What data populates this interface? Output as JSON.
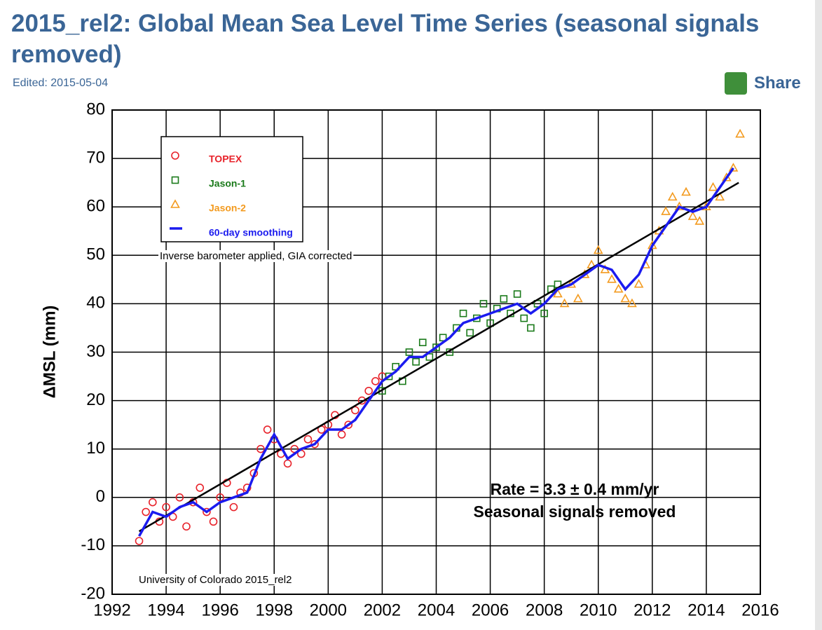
{
  "header": {
    "title": "2015_rel2: Global Mean Sea Level Time Series (seasonal signals removed)",
    "edited": "Edited: 2015-05-04",
    "share": "Share"
  },
  "chart_data": {
    "type": "scatter",
    "ylabel": "ΔMSL (mm)",
    "annotations": [
      "Inverse barometer applied, GIA corrected",
      "Rate = 3.3 ± 0.4 mm/yr",
      "Seasonal signals removed",
      "University of Colorado 2015_rel2"
    ],
    "xlim": [
      1992,
      2016
    ],
    "xticks": [
      1992,
      1994,
      1996,
      1998,
      2000,
      2002,
      2004,
      2006,
      2008,
      2010,
      2012,
      2014,
      2016
    ],
    "ylim": [
      -20,
      80
    ],
    "yticks": [
      -20,
      -10,
      0,
      10,
      20,
      30,
      40,
      50,
      60,
      70,
      80
    ],
    "grid": true,
    "series": [
      {
        "name": "TOPEX",
        "color": "#e8222a",
        "marker": "circle",
        "x": [
          1993.0,
          1993.25,
          1993.5,
          1993.75,
          1994.0,
          1994.25,
          1994.5,
          1994.75,
          1995.0,
          1995.25,
          1995.5,
          1995.75,
          1996.0,
          1996.25,
          1996.5,
          1996.75,
          1997.0,
          1997.25,
          1997.5,
          1997.75,
          1998.0,
          1998.25,
          1998.5,
          1998.75,
          1999.0,
          1999.25,
          1999.5,
          1999.75,
          2000.0,
          2000.25,
          2000.5,
          2000.75,
          2001.0,
          2001.25,
          2001.5,
          2001.75,
          2002.0
        ],
        "values": [
          -9,
          -3,
          -1,
          -5,
          -2,
          -4,
          0,
          -6,
          -1,
          2,
          -3,
          -5,
          0,
          3,
          -2,
          1,
          2,
          5,
          10,
          14,
          12,
          9,
          7,
          10,
          9,
          12,
          11,
          14,
          15,
          17,
          13,
          15,
          18,
          20,
          22,
          24,
          25
        ]
      },
      {
        "name": "Jason-1",
        "color": "#1a7a1a",
        "marker": "square",
        "x": [
          2002.0,
          2002.25,
          2002.5,
          2002.75,
          2003.0,
          2003.25,
          2003.5,
          2003.75,
          2004.0,
          2004.25,
          2004.5,
          2004.75,
          2005.0,
          2005.25,
          2005.5,
          2005.75,
          2006.0,
          2006.25,
          2006.5,
          2006.75,
          2007.0,
          2007.25,
          2007.5,
          2007.75,
          2008.0,
          2008.25,
          2008.5
        ],
        "values": [
          22,
          25,
          27,
          24,
          30,
          28,
          32,
          29,
          31,
          33,
          30,
          35,
          38,
          34,
          37,
          40,
          36,
          39,
          41,
          38,
          42,
          37,
          35,
          40,
          38,
          43,
          44
        ]
      },
      {
        "name": "Jason-2",
        "color": "#f39a1e",
        "marker": "triangle",
        "x": [
          2008.5,
          2008.75,
          2009.0,
          2009.25,
          2009.5,
          2009.75,
          2010.0,
          2010.25,
          2010.5,
          2010.75,
          2011.0,
          2011.25,
          2011.5,
          2011.75,
          2012.0,
          2012.25,
          2012.5,
          2012.75,
          2013.0,
          2013.25,
          2013.5,
          2013.75,
          2014.0,
          2014.25,
          2014.5,
          2014.75,
          2015.0,
          2015.25
        ],
        "values": [
          42,
          40,
          44,
          41,
          46,
          48,
          51,
          47,
          45,
          43,
          41,
          40,
          44,
          48,
          52,
          55,
          59,
          62,
          60,
          63,
          58,
          57,
          60,
          64,
          62,
          66,
          68,
          75
        ]
      },
      {
        "name": "60-day smoothing",
        "color": "#1b1bef",
        "marker": "line",
        "x": [
          1993,
          1993.5,
          1994,
          1994.5,
          1995,
          1995.5,
          1996,
          1996.5,
          1997,
          1997.5,
          1998,
          1998.5,
          1999,
          1999.5,
          2000,
          2000.5,
          2001,
          2001.5,
          2002,
          2002.5,
          2003,
          2003.5,
          2004,
          2004.5,
          2005,
          2005.5,
          2006,
          2006.5,
          2007,
          2007.5,
          2008,
          2008.5,
          2009,
          2009.5,
          2010,
          2010.5,
          2011,
          2011.5,
          2012,
          2012.5,
          2013,
          2013.5,
          2014,
          2014.5,
          2015
        ],
        "values": [
          -8,
          -3,
          -4,
          -2,
          -1,
          -3,
          -1,
          0,
          1,
          8,
          13,
          8,
          10,
          11,
          14,
          14,
          16,
          20,
          24,
          26,
          29,
          29,
          31,
          33,
          36,
          37,
          38,
          39,
          40,
          38,
          40,
          43,
          44,
          46,
          48,
          47,
          43,
          46,
          52,
          56,
          60,
          59,
          60,
          64,
          68
        ]
      }
    ],
    "trend": {
      "color": "#000000",
      "x": [
        1993,
        2015.2
      ],
      "values": [
        -7,
        65
      ]
    }
  }
}
